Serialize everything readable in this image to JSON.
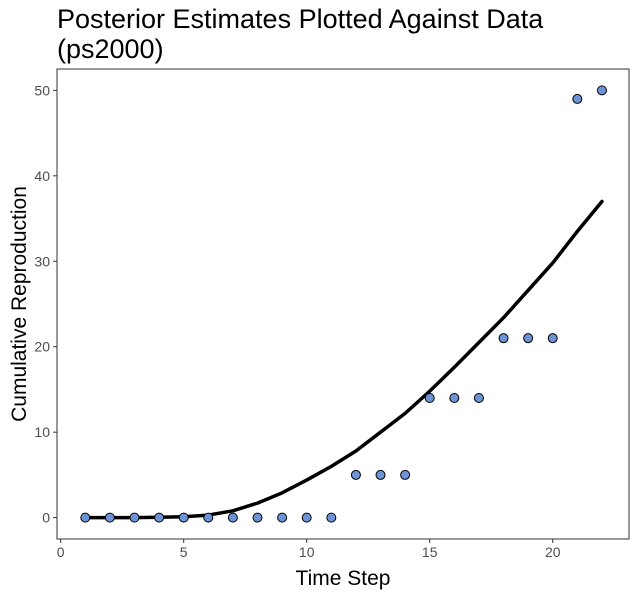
{
  "chart_data": {
    "type": "scatter",
    "title": "Posterior Estimates Plotted Against Data",
    "subtitle": "(ps2000)",
    "xlabel": "Time Step",
    "ylabel": "Cumulative Reproduction",
    "xlim": [
      -0.15,
      23.1
    ],
    "ylim": [
      -2.5,
      52.5
    ],
    "x_ticks": [
      0,
      5,
      10,
      15,
      20
    ],
    "y_ticks": [
      0,
      10,
      20,
      30,
      40,
      50
    ],
    "grid": false,
    "series": [
      {
        "kind": "points",
        "color": "#6d93d6",
        "x": [
          1,
          2,
          3,
          4,
          5,
          6,
          7,
          8,
          9,
          10,
          11,
          12,
          13,
          14,
          15,
          16,
          17,
          18,
          19,
          20,
          21,
          22
        ],
        "y": [
          0,
          0,
          0,
          0,
          0,
          0,
          0,
          0,
          0,
          0,
          0,
          5,
          5,
          5,
          14,
          14,
          14,
          21,
          21,
          21,
          49,
          50
        ]
      },
      {
        "kind": "line",
        "color": "#000000",
        "x": [
          1,
          2,
          3,
          4,
          5,
          6,
          7,
          8,
          9,
          10,
          11,
          12,
          13,
          14,
          15,
          16,
          17,
          18,
          19,
          20,
          21,
          22
        ],
        "y": [
          0,
          0,
          0,
          0.05,
          0.1,
          0.3,
          0.8,
          1.7,
          2.9,
          4.4,
          6.0,
          7.8,
          10.0,
          12.2,
          14.8,
          17.6,
          20.5,
          23.4,
          26.6,
          29.8,
          33.5,
          37.0
        ]
      }
    ]
  }
}
